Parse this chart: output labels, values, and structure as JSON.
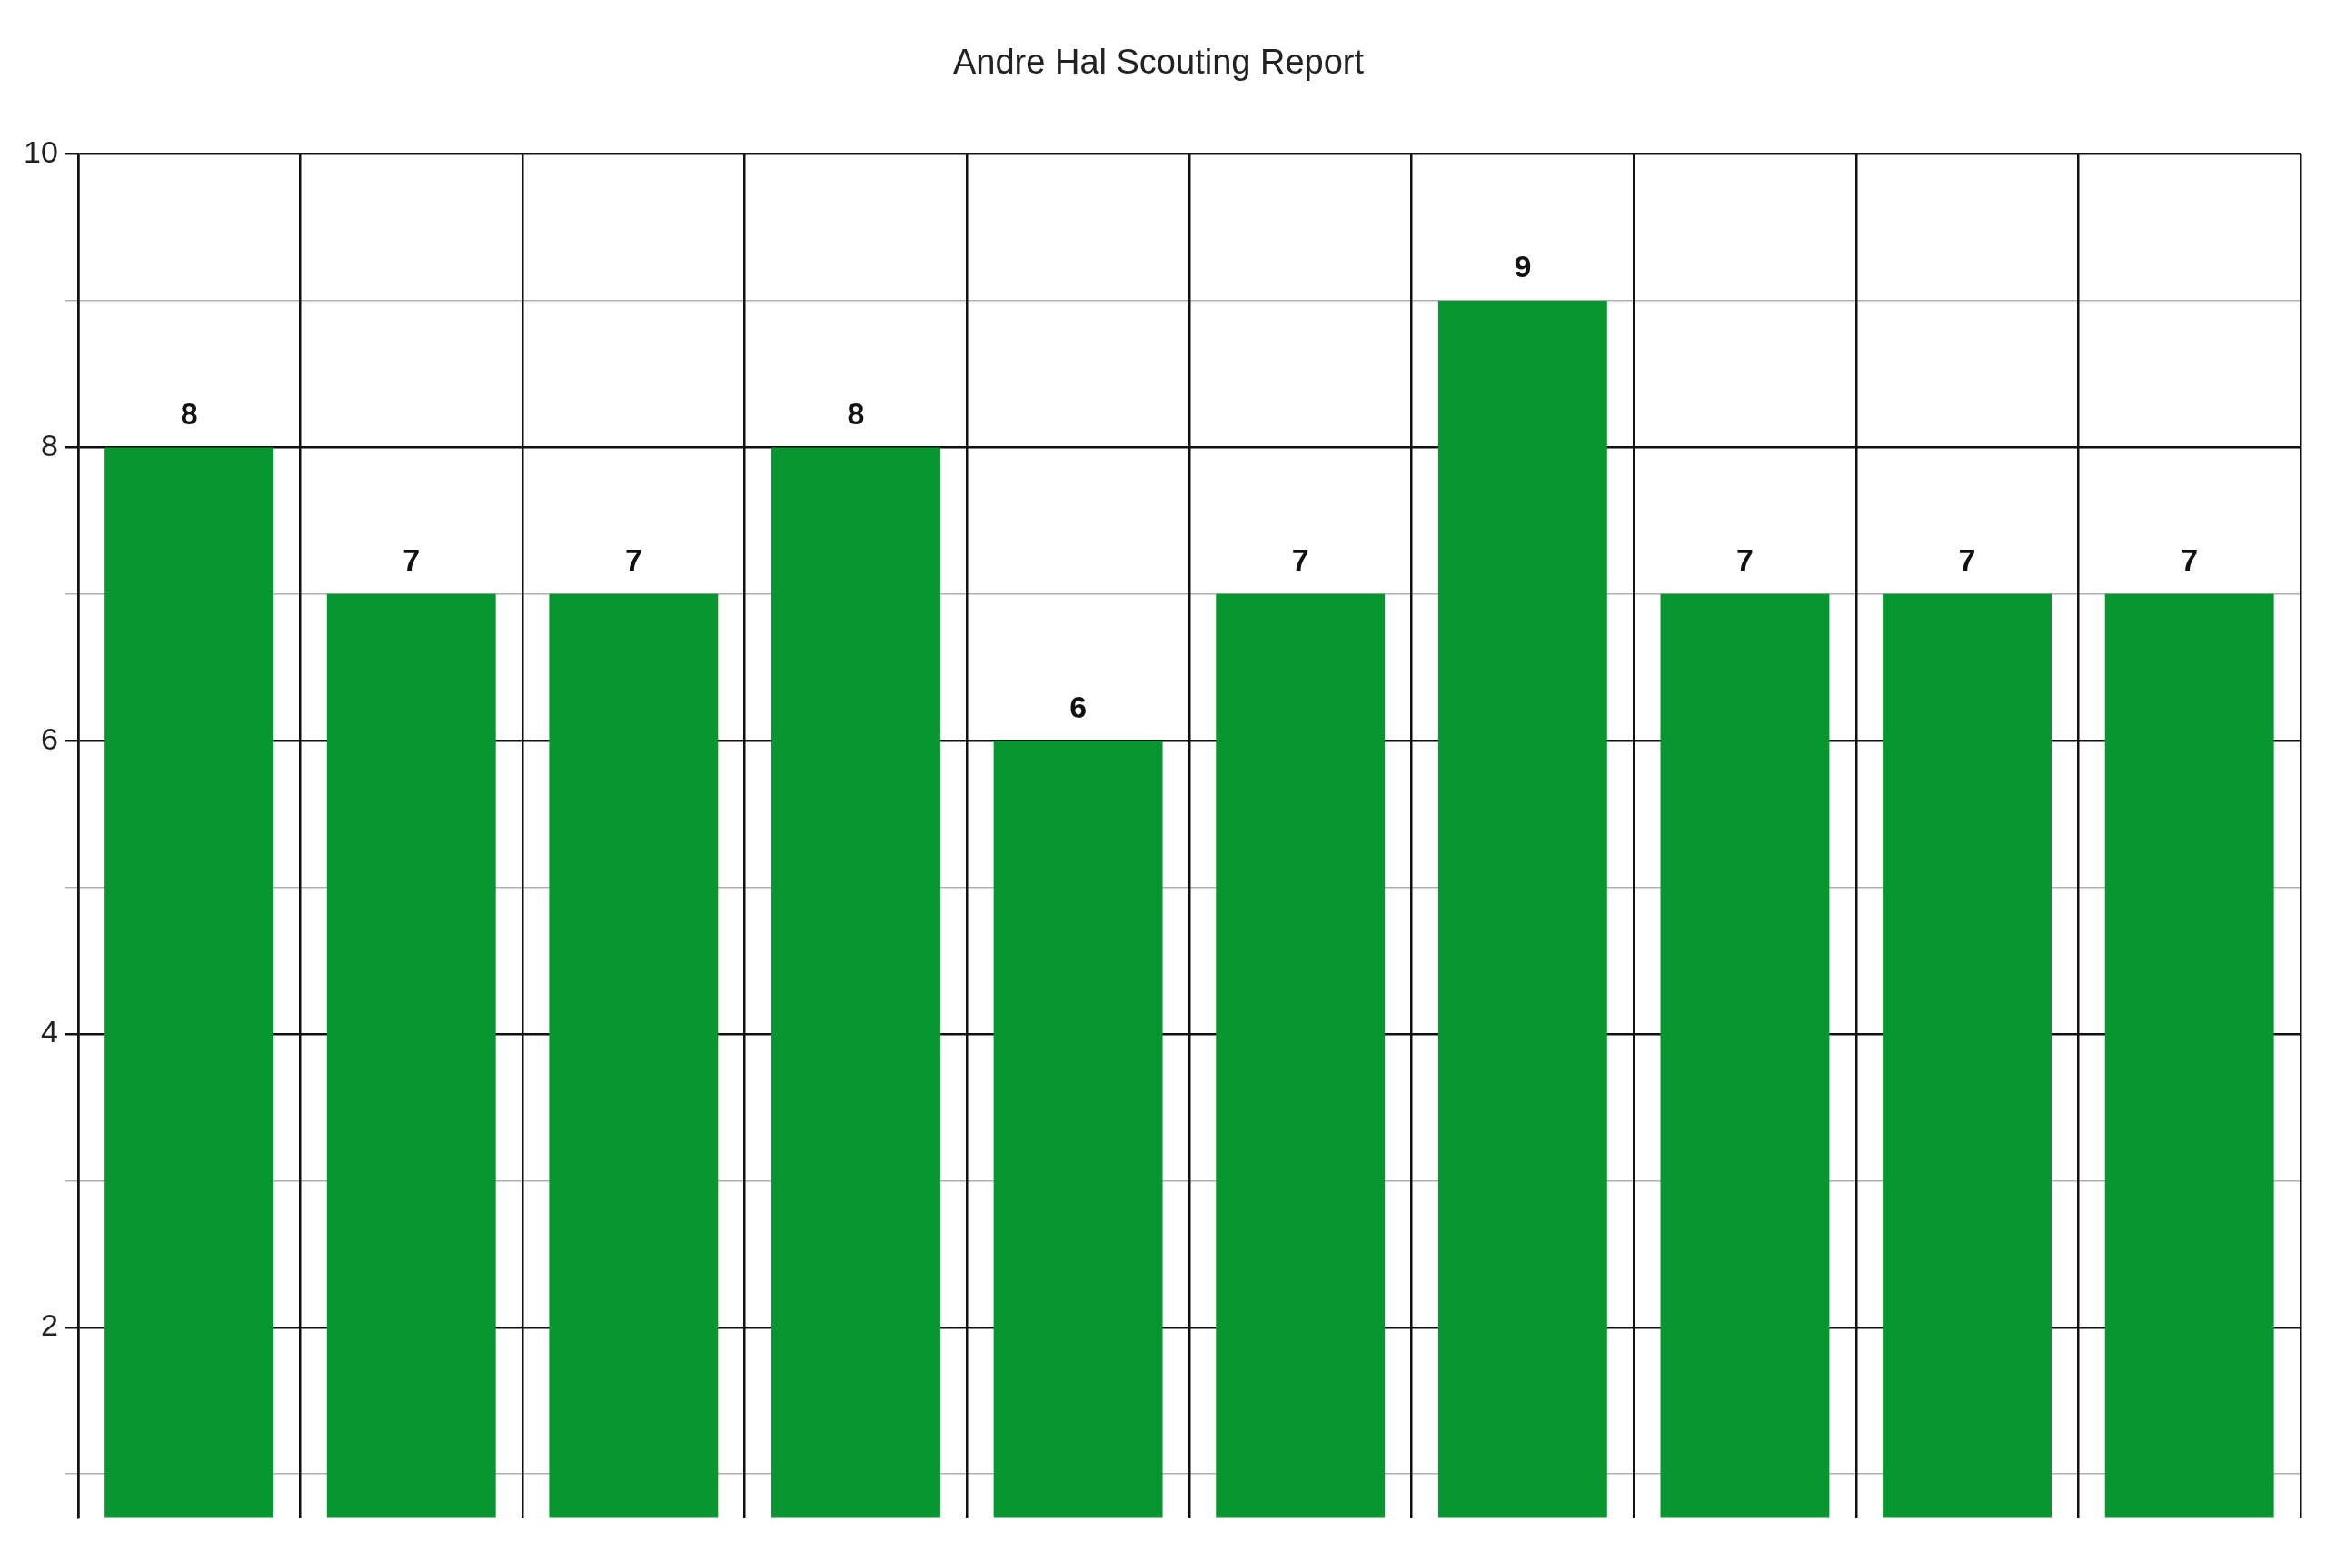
{
  "chart_data": {
    "type": "bar",
    "title": "Andre Hal Scouting Report",
    "categories": [
      null,
      null,
      null,
      null,
      null,
      null,
      null,
      null,
      null,
      null
    ],
    "values": [
      8,
      7,
      7,
      8,
      6,
      7,
      9,
      7,
      7,
      7
    ],
    "color": "#07962f",
    "ylim": [
      0.7,
      10
    ],
    "yticks": [
      {
        "value": 1,
        "label": null
      },
      2,
      {
        "value": 3,
        "label": null
      },
      4,
      {
        "value": 5,
        "label": null
      },
      6,
      {
        "value": 7,
        "label": null
      },
      8,
      {
        "value": 9,
        "label": null
      },
      10
    ],
    "grid": true,
    "legend": false,
    "tick_labels": "y",
    "data_labels": true
  }
}
